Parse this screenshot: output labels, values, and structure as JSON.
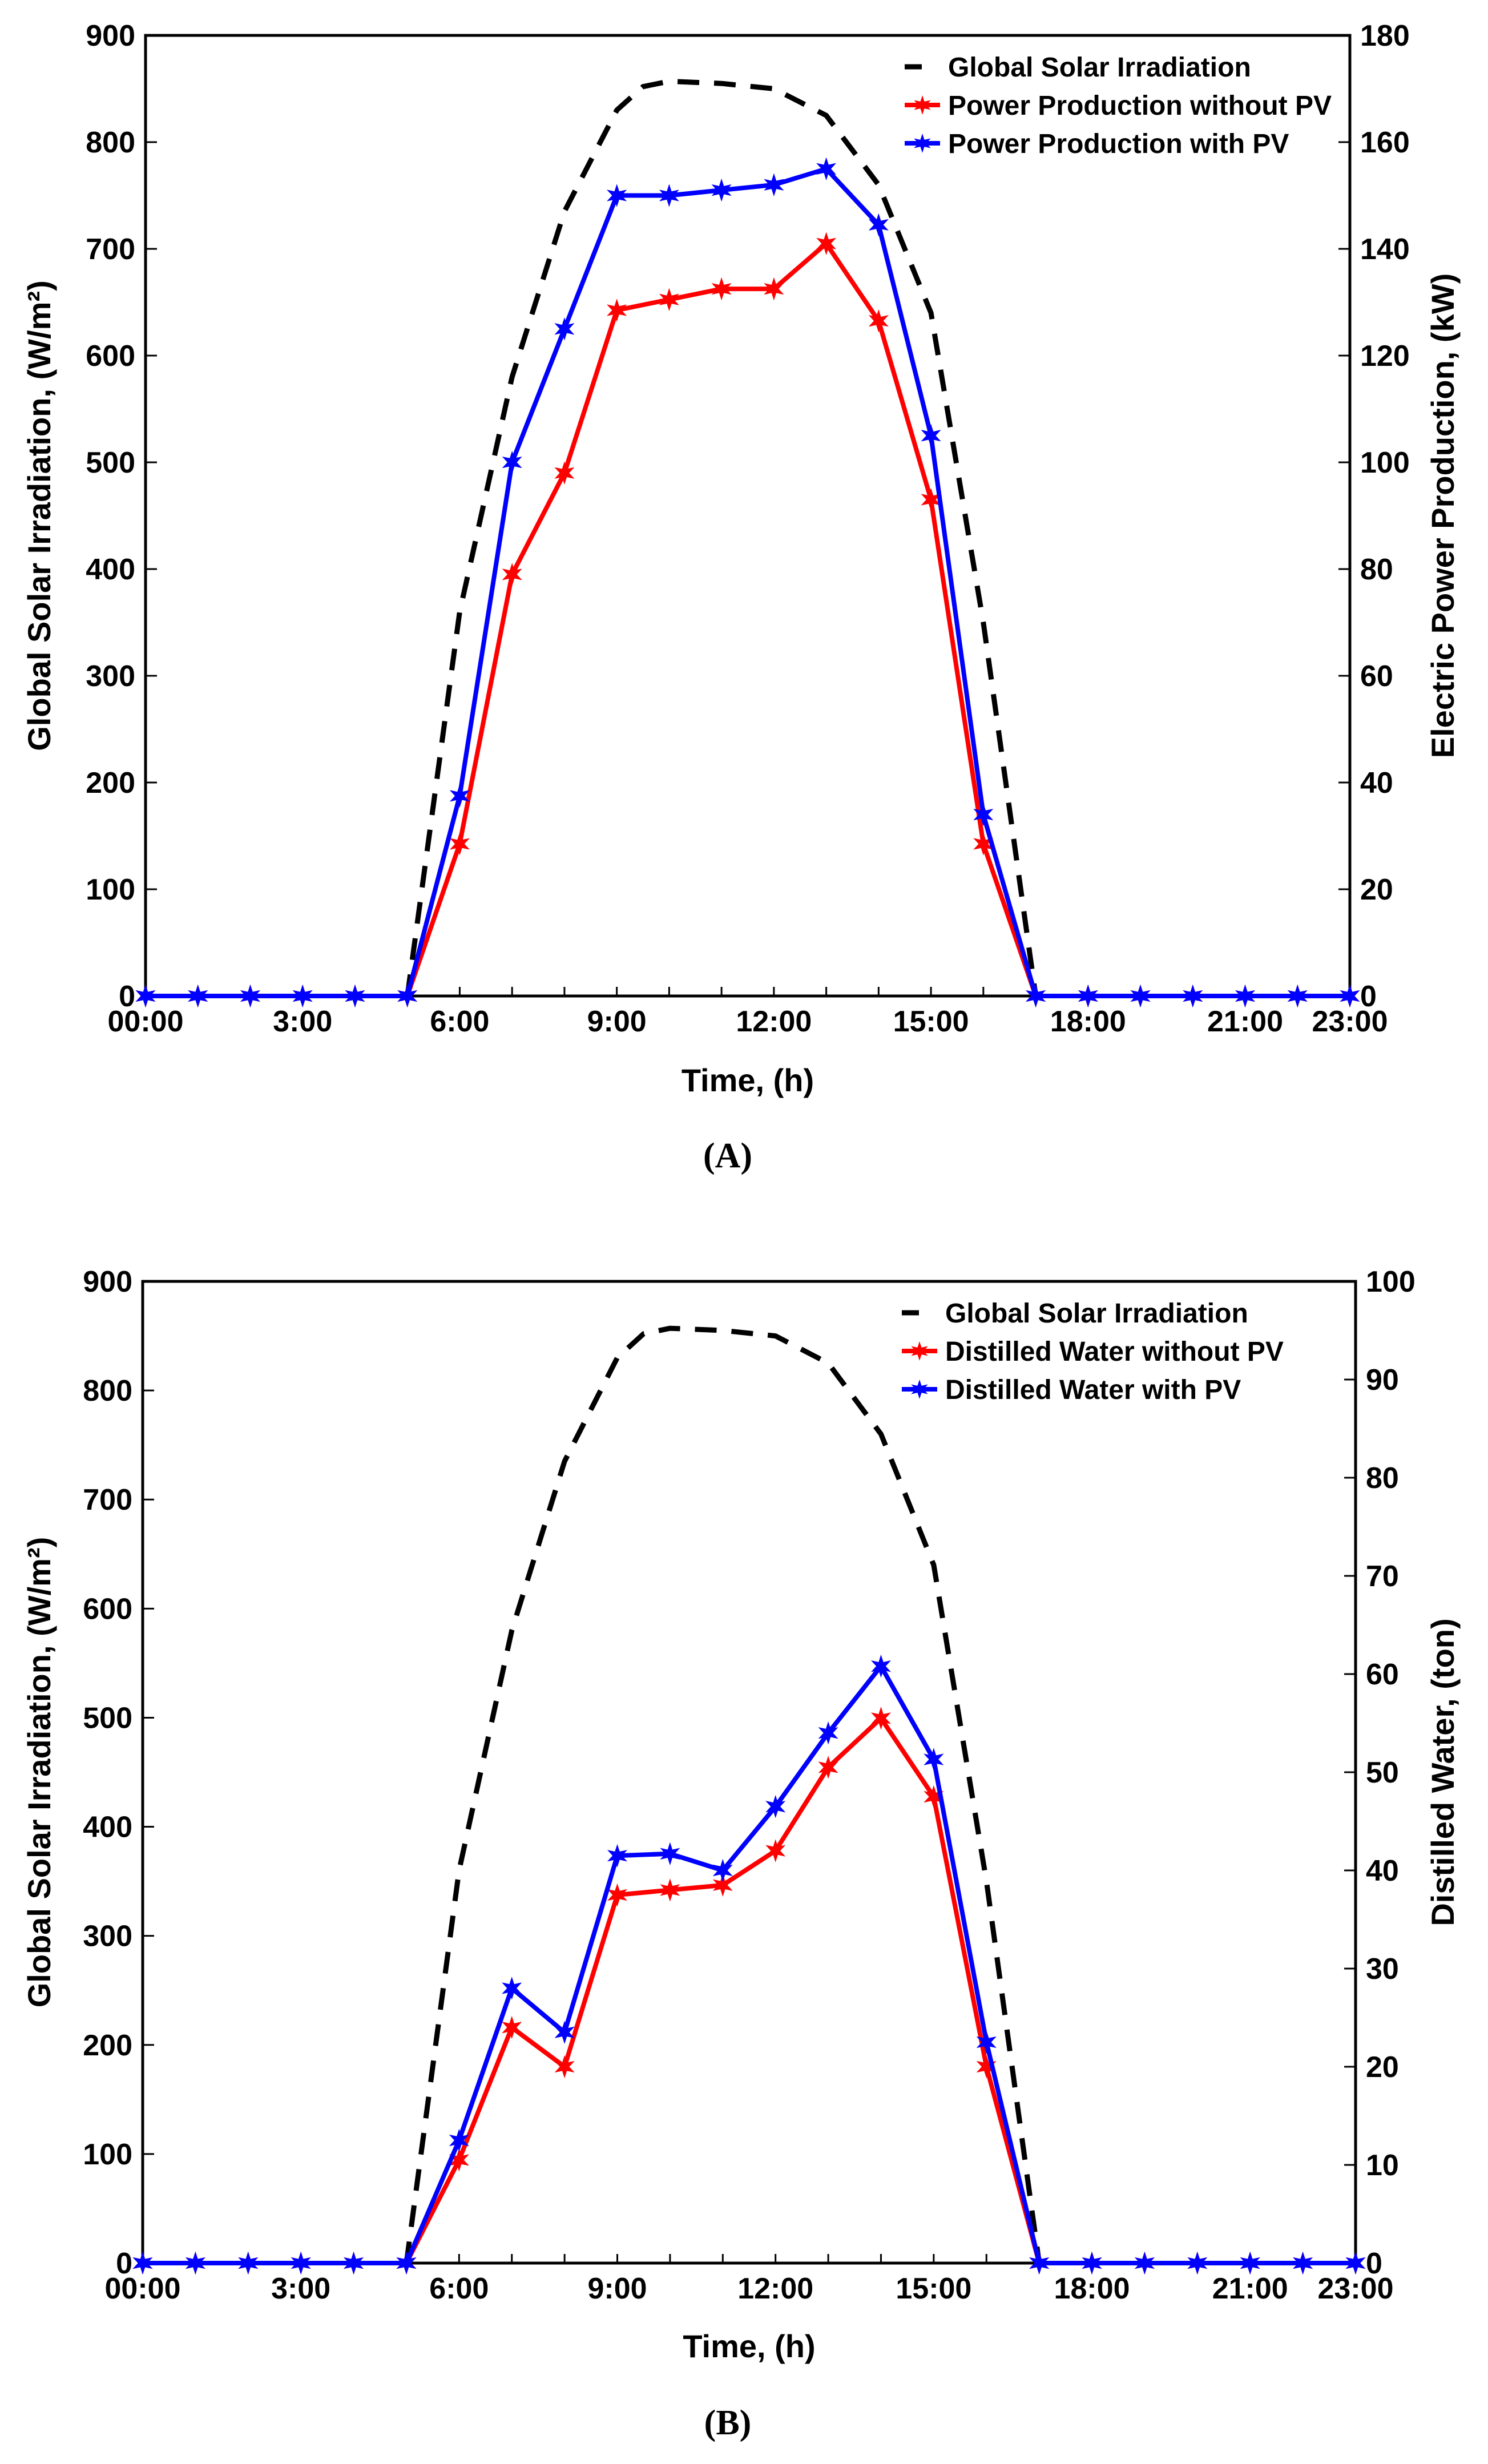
{
  "chart_data": [
    {
      "id": "A",
      "type": "line",
      "panel_label": "(A)",
      "title": "",
      "xlabel": "Time, (h)",
      "ylabel_left": "Global Solar Irradiation, (W/m²)",
      "ylabel_right": "Electric Power Production, (kW)",
      "xlim": [
        0,
        23
      ],
      "ylim_left": [
        0,
        900
      ],
      "ylim_right": [
        0,
        180
      ],
      "xticks": [
        {
          "v": 0,
          "label": "00:00"
        },
        {
          "v": 3,
          "label": "3:00"
        },
        {
          "v": 6,
          "label": "6:00"
        },
        {
          "v": 9,
          "label": "9:00"
        },
        {
          "v": 12,
          "label": "12:00"
        },
        {
          "v": 15,
          "label": "15:00"
        },
        {
          "v": 18,
          "label": "18:00"
        },
        {
          "v": 21,
          "label": "21:00"
        },
        {
          "v": 23,
          "label": "23:00"
        }
      ],
      "yticks_left": [
        0,
        100,
        200,
        300,
        400,
        500,
        600,
        700,
        800,
        900
      ],
      "yticks_right": [
        0,
        20,
        40,
        60,
        80,
        100,
        120,
        140,
        160,
        180
      ],
      "legend_position": "top-right",
      "x": [
        0,
        1,
        2,
        3,
        4,
        5,
        6,
        7,
        8,
        9,
        10,
        11,
        12,
        13,
        14,
        15,
        16,
        17,
        18,
        19,
        20,
        21,
        22,
        23
      ],
      "series": [
        {
          "name": "Global Solar Irradiation",
          "axis": "left",
          "style": "dashed",
          "color": "#000000",
          "x": [
            5,
            6,
            7,
            8,
            9,
            9.5,
            10,
            11,
            12,
            13,
            14,
            15,
            16,
            17
          ],
          "values": [
            0,
            360,
            580,
            735,
            830,
            852,
            857,
            855,
            850,
            825,
            760,
            640,
            350,
            0
          ]
        },
        {
          "name": "Power Production without PV",
          "axis": "right",
          "style": "solid-star",
          "color": "#ff0000",
          "values": [
            0,
            0,
            0,
            0,
            0,
            0,
            28.5,
            79,
            98,
            128.5,
            130.5,
            132.5,
            132.5,
            141,
            126.5,
            93,
            28.5,
            0,
            0,
            0,
            0,
            0,
            0,
            0
          ]
        },
        {
          "name": "Power Production with PV",
          "axis": "right",
          "style": "solid-star",
          "color": "#0000ff",
          "values": [
            0,
            0,
            0,
            0,
            0,
            0,
            37.5,
            100,
            125,
            150,
            150,
            151,
            152,
            155,
            144.5,
            105,
            34,
            0,
            0,
            0,
            0,
            0,
            0,
            0
          ]
        }
      ]
    },
    {
      "id": "B",
      "type": "line",
      "panel_label": "(B)",
      "title": "",
      "xlabel": "Time, (h)",
      "ylabel_left": "Global Solar Irradiation, (W/m²)",
      "ylabel_right": "Distilled Water, (ton)",
      "xlim": [
        0,
        23
      ],
      "ylim_left": [
        0,
        900
      ],
      "ylim_right": [
        0,
        100
      ],
      "xticks": [
        {
          "v": 0,
          "label": "00:00"
        },
        {
          "v": 3,
          "label": "3:00"
        },
        {
          "v": 6,
          "label": "6:00"
        },
        {
          "v": 9,
          "label": "9:00"
        },
        {
          "v": 12,
          "label": "12:00"
        },
        {
          "v": 15,
          "label": "15:00"
        },
        {
          "v": 18,
          "label": "18:00"
        },
        {
          "v": 21,
          "label": "21:00"
        },
        {
          "v": 23,
          "label": "23:00"
        }
      ],
      "yticks_left": [
        0,
        100,
        200,
        300,
        400,
        500,
        600,
        700,
        800,
        900
      ],
      "yticks_right": [
        0,
        10,
        20,
        30,
        40,
        50,
        60,
        70,
        80,
        90,
        100
      ],
      "legend_position": "top-right",
      "x": [
        0,
        1,
        2,
        3,
        4,
        5,
        6,
        7,
        8,
        9,
        10,
        11,
        12,
        13,
        14,
        15,
        16,
        17,
        18,
        19,
        20,
        21,
        22,
        23
      ],
      "series": [
        {
          "name": "Global Solar Irradiation",
          "axis": "left",
          "style": "dashed",
          "color": "#000000",
          "x": [
            5,
            6,
            7,
            8,
            9,
            9.5,
            10,
            11,
            12,
            13,
            14,
            15,
            16,
            17
          ],
          "values": [
            0,
            360,
            580,
            735,
            830,
            852,
            857,
            855,
            850,
            825,
            760,
            640,
            350,
            0
          ]
        },
        {
          "name": "Distilled Water without PV",
          "axis": "right",
          "style": "solid-star",
          "color": "#ff0000",
          "values": [
            0,
            0,
            0,
            0,
            0,
            0,
            10.5,
            24,
            20,
            37.5,
            38,
            38.5,
            42,
            50.5,
            55.5,
            47.5,
            20,
            0,
            0,
            0,
            0,
            0,
            0,
            0
          ]
        },
        {
          "name": "Distilled Water with PV",
          "axis": "right",
          "style": "solid-star",
          "color": "#0000ff",
          "values": [
            0,
            0,
            0,
            0,
            0,
            0,
            12.5,
            28,
            23.5,
            41.5,
            41.7,
            40,
            46.5,
            54,
            60.8,
            51.3,
            22.5,
            0,
            0,
            0,
            0,
            0,
            0,
            0
          ]
        }
      ]
    }
  ]
}
